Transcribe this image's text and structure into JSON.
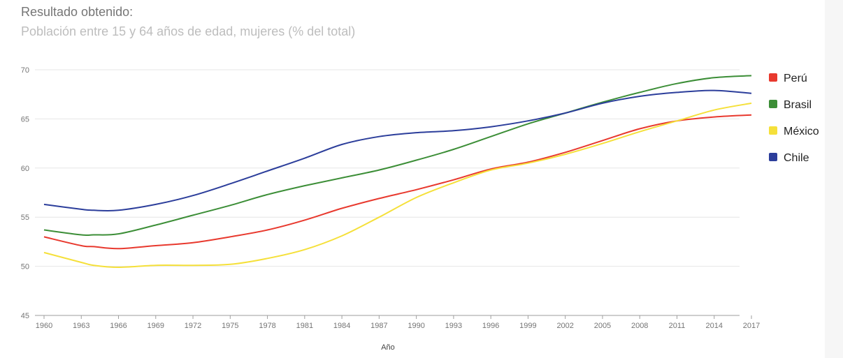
{
  "header": {
    "title": "Resultado obtenido:",
    "subtitle": "Población entre 15 y 64 años de edad, mujeres (% del total)"
  },
  "chart_data": {
    "type": "line",
    "title": "Resultado obtenido:",
    "subtitle": "Población entre 15 y 64 años de edad, mujeres (% del total)",
    "xlabel": "Año",
    "ylabel": "",
    "xlim": [
      1960,
      2017
    ],
    "ylim": [
      45,
      70
    ],
    "yticks": [
      45,
      50,
      55,
      60,
      65,
      70
    ],
    "xticks": [
      1960,
      1963,
      1966,
      1969,
      1972,
      1975,
      1978,
      1981,
      1984,
      1987,
      1990,
      1993,
      1996,
      1999,
      2002,
      2005,
      2008,
      2011,
      2014,
      2017
    ],
    "grid": true,
    "legend_position": "right",
    "x": [
      1960,
      1963,
      1964,
      1966,
      1969,
      1972,
      1975,
      1978,
      1981,
      1984,
      1987,
      1990,
      1993,
      1996,
      1999,
      2002,
      2005,
      2008,
      2011,
      2014,
      2017
    ],
    "series": [
      {
        "name": "Perú",
        "color": "#e8392e",
        "values": [
          53.0,
          52.1,
          52.0,
          51.8,
          52.1,
          52.4,
          53.0,
          53.7,
          54.7,
          55.9,
          56.9,
          57.8,
          58.8,
          59.9,
          60.6,
          61.6,
          62.8,
          64.0,
          64.8,
          65.2,
          65.4
        ]
      },
      {
        "name": "Brasil",
        "color": "#3c8e37",
        "values": [
          53.7,
          53.2,
          53.2,
          53.3,
          54.2,
          55.2,
          56.2,
          57.3,
          58.2,
          59.0,
          59.8,
          60.8,
          61.9,
          63.2,
          64.5,
          65.6,
          66.7,
          67.7,
          68.6,
          69.2,
          69.4
        ]
      },
      {
        "name": "México",
        "color": "#f5e03a",
        "values": [
          51.4,
          50.4,
          50.1,
          49.9,
          50.1,
          50.1,
          50.2,
          50.8,
          51.7,
          53.1,
          55.0,
          57.0,
          58.5,
          59.8,
          60.5,
          61.4,
          62.5,
          63.7,
          64.8,
          65.9,
          66.6
        ]
      },
      {
        "name": "Chile",
        "color": "#2c3e9b",
        "values": [
          56.3,
          55.8,
          55.7,
          55.7,
          56.3,
          57.2,
          58.4,
          59.7,
          61.0,
          62.4,
          63.2,
          63.6,
          63.8,
          64.2,
          64.8,
          65.6,
          66.6,
          67.3,
          67.7,
          67.9,
          67.6
        ]
      }
    ]
  }
}
